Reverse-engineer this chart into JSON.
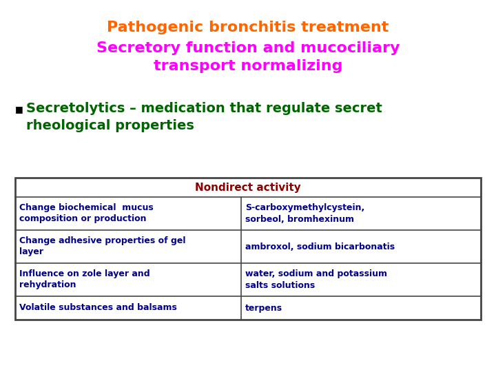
{
  "title_line1": "Pathogenic bronchitis treatment",
  "title_line2": "Secretory function and mucociliary\ntransport normalizing",
  "title_color1": "#FF6600",
  "title_color2": "#FF00FF",
  "bullet_text": "Secretolytics – medication that regulate secret\nrheological properties",
  "bullet_color": "#006400",
  "bullet_marker_color": "#000000",
  "table_header": "Nondirect activity",
  "table_header_color": "#8B0000",
  "table_header_bg": "#FFFFFF",
  "table_cell_color": "#00008B",
  "table_rows": [
    [
      "Change biochemical  mucus\ncomposition or production",
      "S-carboxymethylcystein,\nsorbeol, bromhexinum"
    ],
    [
      "Change adhesive properties of gel\nlayer",
      "ambroxol, sodium bicarbonatis"
    ],
    [
      "Influence on zole layer and\nrehydration",
      "water, sodium and potassium\nsalts solutions"
    ],
    [
      "Volatile substances and balsams",
      "terpens"
    ]
  ],
  "bg_color": "#FFFFFF",
  "table_border_color": "#444444",
  "table_bg_color": "#FFFFFF",
  "title1_fontsize": 16,
  "title2_fontsize": 16,
  "bullet_fontsize": 14,
  "table_header_fontsize": 11,
  "table_cell_fontsize": 9
}
